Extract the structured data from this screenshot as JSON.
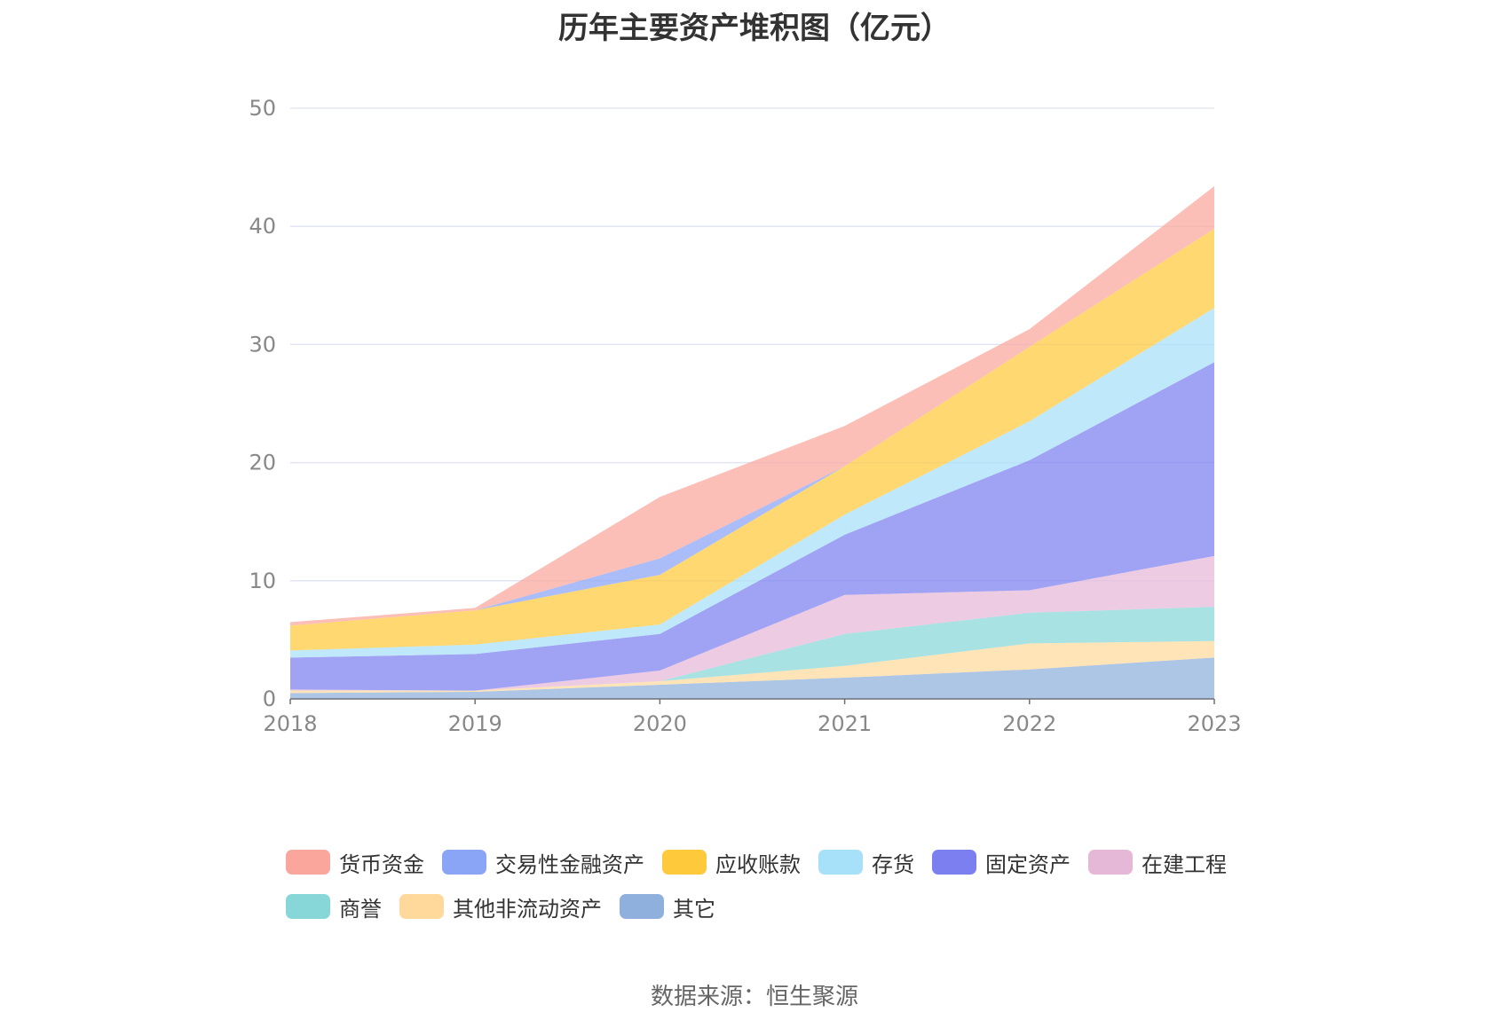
{
  "chart_data": {
    "type": "area",
    "stacked": true,
    "title": "历年主要资产堆积图（亿元）",
    "x": [
      "2018",
      "2019",
      "2020",
      "2021",
      "2022",
      "2023"
    ],
    "ylim": [
      0,
      50
    ],
    "yticks": [
      0,
      10,
      20,
      30,
      40,
      50
    ],
    "grid": true,
    "legend_position": "bottom",
    "series": [
      {
        "name": "其它",
        "color": "#8fb0dc",
        "values": [
          0.5,
          0.6,
          1.2,
          1.8,
          2.5,
          3.5
        ]
      },
      {
        "name": "其他非流动资产",
        "color": "#ffd99b",
        "values": [
          0.2,
          0.1,
          0.3,
          1.0,
          2.2,
          1.4
        ]
      },
      {
        "name": "商誉",
        "color": "#88d7d8",
        "values": [
          0.0,
          0.0,
          0.0,
          2.7,
          2.6,
          2.9
        ]
      },
      {
        "name": "在建工程",
        "color": "#e6b8d8",
        "values": [
          0.1,
          0.0,
          0.9,
          3.3,
          1.9,
          4.3
        ]
      },
      {
        "name": "固定资产",
        "color": "#7b7ff0",
        "values": [
          2.7,
          3.1,
          3.1,
          5.1,
          11.0,
          16.4
        ]
      },
      {
        "name": "存货",
        "color": "#a6e1f9",
        "values": [
          0.6,
          0.8,
          0.8,
          1.7,
          3.3,
          4.6
        ]
      },
      {
        "name": "应收账款",
        "color": "#ffc93c",
        "values": [
          2.1,
          2.9,
          4.2,
          4.1,
          6.3,
          6.7
        ]
      },
      {
        "name": "交易性金融资产",
        "color": "#8aa4f6",
        "values": [
          0.0,
          0.0,
          1.4,
          0.0,
          0.0,
          0.0
        ]
      },
      {
        "name": "货币资金",
        "color": "#fba69d",
        "values": [
          0.3,
          0.2,
          5.2,
          3.4,
          1.5,
          3.6
        ]
      }
    ]
  },
  "legend": {
    "row1": [
      {
        "label": "货币资金",
        "color": "#fba69d"
      },
      {
        "label": "交易性金融资产",
        "color": "#8aa4f6"
      },
      {
        "label": "应收账款",
        "color": "#ffc93c"
      },
      {
        "label": "存货",
        "color": "#a6e1f9"
      },
      {
        "label": "固定资产",
        "color": "#7b7ff0"
      },
      {
        "label": "在建工程",
        "color": "#e6b8d8"
      }
    ],
    "row2": [
      {
        "label": "商誉",
        "color": "#88d7d8"
      },
      {
        "label": "其他非流动资产",
        "color": "#ffd99b"
      },
      {
        "label": "其它",
        "color": "#8fb0dc"
      }
    ]
  },
  "source": "数据来源：恒生聚源"
}
